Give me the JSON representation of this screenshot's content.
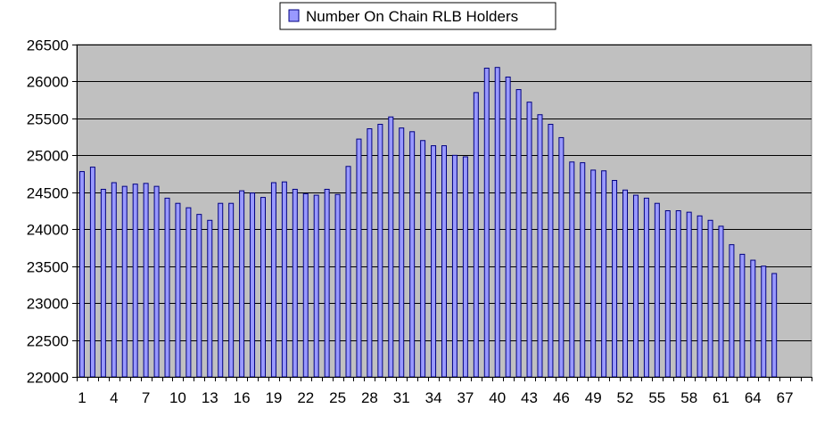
{
  "chart_data": {
    "type": "bar",
    "legend": {
      "placement": "top-center",
      "series_label": "Number On Chain RLB Holders"
    },
    "series": [
      {
        "name": "Number On Chain RLB Holders",
        "color": "#9999ff",
        "values": [
          24780,
          24840,
          24540,
          24630,
          24580,
          24610,
          24620,
          24580,
          24420,
          24350,
          24290,
          24200,
          24120,
          24350,
          24350,
          24520,
          24490,
          24430,
          24630,
          24640,
          24540,
          24480,
          24460,
          24540,
          24470,
          24850,
          25220,
          25360,
          25420,
          25520,
          25370,
          25320,
          25200,
          25130,
          25130,
          25000,
          24980,
          25850,
          26180,
          26190,
          26060,
          25890,
          25720,
          25550,
          25420,
          25240,
          24910,
          24900,
          24800,
          24790,
          24660,
          24530,
          24460,
          24420,
          24350,
          24250,
          24250,
          24230,
          24180,
          24120,
          24040,
          23790,
          23660,
          23580,
          23500,
          23400
        ]
      }
    ],
    "x_tick_labels": [
      "1",
      "4",
      "7",
      "10",
      "13",
      "16",
      "19",
      "22",
      "25",
      "28",
      "31",
      "34",
      "37",
      "40",
      "43",
      "46",
      "49",
      "52",
      "55",
      "58",
      "61",
      "64",
      "67"
    ],
    "x_tick_values": [
      1,
      4,
      7,
      10,
      13,
      16,
      19,
      22,
      25,
      28,
      31,
      34,
      37,
      40,
      43,
      46,
      49,
      52,
      55,
      58,
      61,
      64,
      67
    ],
    "x_category_count": 69,
    "ylim": [
      22000,
      26500
    ],
    "y_ticks": [
      22000,
      22500,
      23000,
      23500,
      24000,
      24500,
      25000,
      25500,
      26000,
      26500
    ],
    "grid": true,
    "plot_background": "#c0c0c0",
    "bar_stroke": "#000080"
  }
}
